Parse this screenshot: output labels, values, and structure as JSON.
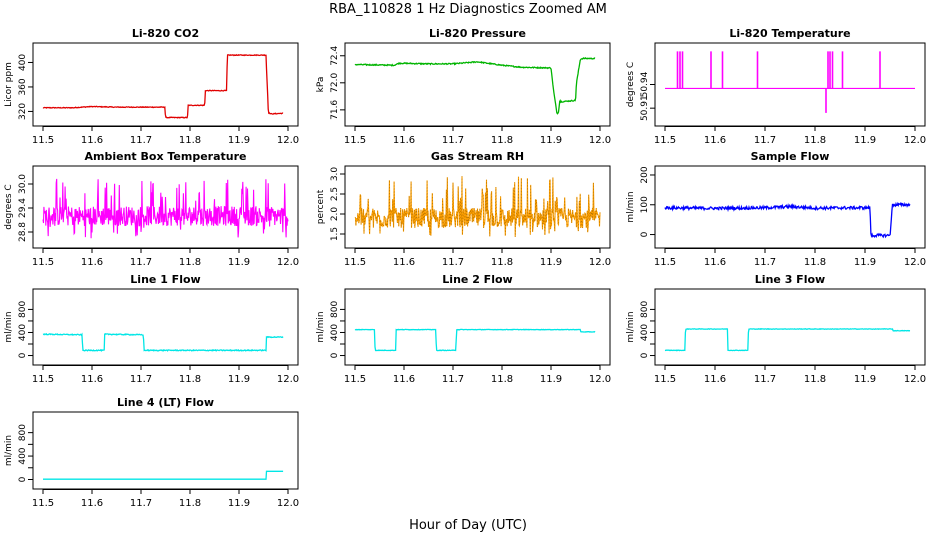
{
  "figure": {
    "title": "RBA_110828  1 Hz Diagnostics Zoomed AM",
    "xlabel": "Hour of Day (UTC)"
  },
  "chart_data": [
    {
      "type": "line",
      "title": "Li-820 CO2",
      "ylabel": "Licor ppm",
      "color": "#e00000",
      "xlim": [
        11.5,
        12.0
      ],
      "xticks": [
        11.5,
        11.6,
        11.7,
        11.8,
        11.9,
        12.0
      ],
      "xtick_labels": [
        "11.5",
        "11.6",
        "11.7",
        "11.8",
        "11.9",
        "12.0"
      ],
      "ylim": [
        306,
        422
      ],
      "yticks": [
        320,
        360,
        400
      ],
      "ytick_labels": [
        "320",
        "360",
        "400"
      ],
      "noise": 0.6,
      "series": [
        {
          "x": [
            11.5,
            11.56,
            11.6,
            11.65,
            11.7,
            11.749,
            11.75,
            11.795,
            11.796,
            11.83,
            11.831,
            11.875,
            11.876,
            11.955,
            11.96,
            11.965,
            11.99
          ],
          "y": [
            326,
            326,
            328,
            327,
            327,
            327,
            310,
            310,
            330,
            330,
            354,
            354,
            412,
            412,
            318,
            316,
            317
          ]
        }
      ]
    },
    {
      "type": "line",
      "title": "Li-820 Pressure",
      "ylabel": "kPa",
      "color": "#00b400",
      "xlim": [
        11.5,
        12.0
      ],
      "xticks": [
        11.5,
        11.6,
        11.7,
        11.8,
        11.9,
        12.0
      ],
      "xtick_labels": [
        "11.5",
        "11.6",
        "11.7",
        "11.8",
        "11.9",
        "12.0"
      ],
      "ylim": [
        71.45,
        72.5
      ],
      "yticks": [
        71.6,
        72.0,
        72.4
      ],
      "ytick_labels": [
        "71.6",
        "72.0",
        "72.4"
      ],
      "noise": 0.008,
      "series": [
        {
          "x": [
            11.5,
            11.58,
            11.59,
            11.65,
            11.7,
            11.75,
            11.8,
            11.84,
            11.9,
            11.905,
            11.912,
            11.915,
            11.918,
            11.92,
            11.95,
            11.952,
            11.96,
            11.965,
            11.99
          ],
          "y": [
            72.27,
            72.26,
            72.29,
            72.28,
            72.28,
            72.31,
            72.26,
            72.23,
            72.22,
            71.9,
            71.55,
            71.55,
            71.75,
            71.72,
            71.74,
            72.0,
            72.35,
            72.36,
            72.36
          ]
        }
      ]
    },
    {
      "type": "line",
      "title": "Li-820 Temperature",
      "ylabel": "degrees C",
      "color": "#ff00ff",
      "xlim": [
        11.5,
        12.0
      ],
      "xticks": [
        11.5,
        11.6,
        11.7,
        11.8,
        11.9,
        12.0
      ],
      "xtick_labels": [
        "11.5",
        "11.6",
        "11.7",
        "11.8",
        "11.9",
        "12.0"
      ],
      "ylim": [
        50.895,
        50.985
      ],
      "yticks": [
        50.91,
        50.94
      ],
      "ytick_labels": [
        "50.91",
        "50.94"
      ],
      "baseline": 50.935,
      "spikes_up": [
        11.525,
        11.53,
        11.535,
        11.592,
        11.615,
        11.685,
        11.826,
        11.83,
        11.835,
        11.855,
        11.93
      ],
      "spikes_down": [
        11.822
      ],
      "spike_top": 50.982,
      "spike_bottom": 50.904
    },
    {
      "type": "line",
      "title": "Ambient Box Temperature",
      "ylabel": "degrees C",
      "color": "#ff00ff",
      "xlim": [
        11.5,
        12.0
      ],
      "xticks": [
        11.5,
        11.6,
        11.7,
        11.8,
        11.9,
        12.0
      ],
      "xtick_labels": [
        "11.5",
        "11.6",
        "11.7",
        "11.8",
        "11.9",
        "12.0"
      ],
      "ylim": [
        28.55,
        30.3
      ],
      "yticks": [
        28.8,
        29.4,
        30.0
      ],
      "ytick_labels": [
        "28.8",
        "29.4",
        "30.0"
      ],
      "band": {
        "center": 29.2,
        "half_width": 0.25,
        "spike_max": 30.15,
        "spike_min": 28.62
      }
    },
    {
      "type": "line",
      "title": "Gas Stream RH",
      "ylabel": "percent",
      "color": "#ffa000",
      "xlim": [
        11.5,
        12.0
      ],
      "xticks": [
        11.5,
        11.6,
        11.7,
        11.8,
        11.9,
        12.0
      ],
      "xtick_labels": [
        "11.5",
        "11.6",
        "11.7",
        "11.8",
        "11.9",
        "12.0"
      ],
      "ylim": [
        1.3,
        3.05
      ],
      "yticks": [
        1.5,
        2.0,
        2.5,
        3.0
      ],
      "ytick_labels": [
        "1.5",
        "2.0",
        "2.5",
        "3.0"
      ],
      "band": {
        "center": 1.9,
        "half_width": 0.25,
        "spike_max": 2.95,
        "spike_min": 1.4
      }
    },
    {
      "type": "line",
      "title": "Sample Flow",
      "ylabel": "ml/min",
      "color": "#0000ff",
      "xlim": [
        11.5,
        12.0
      ],
      "xticks": [
        11.5,
        11.6,
        11.7,
        11.8,
        11.9,
        12.0
      ],
      "xtick_labels": [
        "11.5",
        "11.6",
        "11.7",
        "11.8",
        "11.9",
        "12.0"
      ],
      "ylim": [
        -25,
        210
      ],
      "yticks": [
        0,
        100,
        200
      ],
      "ytick_labels": [
        "0",
        "100",
        "200"
      ],
      "noise": 5,
      "series": [
        {
          "x": [
            11.5,
            11.6,
            11.7,
            11.75,
            11.8,
            11.9,
            11.91,
            11.912,
            11.95,
            11.955,
            11.99
          ],
          "y": [
            90,
            88,
            90,
            94,
            89,
            90,
            90,
            -3,
            -3,
            100,
            100
          ]
        }
      ]
    },
    {
      "type": "line",
      "title": "Line 1 Flow",
      "ylabel": "ml/min",
      "color": "#00e6e6",
      "xlim": [
        11.5,
        12.0
      ],
      "xticks": [
        11.5,
        11.6,
        11.7,
        11.8,
        11.9,
        12.0
      ],
      "xtick_labels": [
        "11.5",
        "11.6",
        "11.7",
        "11.8",
        "11.9",
        "12.0"
      ],
      "ylim": [
        -60,
        1050
      ],
      "yticks": [
        0,
        200,
        400,
        600,
        800
      ],
      "ytick_labels": [
        "0",
        "400",
        "800"
      ],
      "noise": 8,
      "series": [
        {
          "x": [
            11.5,
            11.58,
            11.581,
            11.625,
            11.626,
            11.705,
            11.706,
            11.955,
            11.956,
            11.99
          ],
          "y": [
            370,
            360,
            90,
            90,
            370,
            360,
            90,
            90,
            320,
            320
          ]
        }
      ]
    },
    {
      "type": "line",
      "title": "Line 2 Flow",
      "ylabel": "ml/min",
      "color": "#00e6e6",
      "xlim": [
        11.5,
        12.0
      ],
      "xticks": [
        11.5,
        11.6,
        11.7,
        11.8,
        11.9,
        12.0
      ],
      "xtick_labels": [
        "11.5",
        "11.6",
        "11.7",
        "11.8",
        "11.9",
        "12.0"
      ],
      "ylim": [
        -60,
        1050
      ],
      "yticks": [
        0,
        200,
        400,
        600,
        800
      ],
      "ytick_labels": [
        "0",
        "400",
        "800"
      ],
      "noise": 4,
      "series": [
        {
          "x": [
            11.5,
            11.54,
            11.541,
            11.583,
            11.584,
            11.665,
            11.666,
            11.706,
            11.707,
            11.96,
            11.961,
            11.99
          ],
          "y": [
            450,
            450,
            90,
            90,
            450,
            450,
            90,
            90,
            450,
            450,
            410,
            410
          ]
        }
      ]
    },
    {
      "type": "line",
      "title": "Line 3 Flow",
      "ylabel": "ml/min",
      "color": "#00e6e6",
      "xlim": [
        11.5,
        12.0
      ],
      "xticks": [
        11.5,
        11.6,
        11.7,
        11.8,
        11.9,
        12.0
      ],
      "xtick_labels": [
        "11.5",
        "11.6",
        "11.7",
        "11.8",
        "11.9",
        "12.0"
      ],
      "ylim": [
        -60,
        1050
      ],
      "yticks": [
        0,
        200,
        400,
        600,
        800
      ],
      "ytick_labels": [
        "0",
        "400",
        "800"
      ],
      "noise": 4,
      "series": [
        {
          "x": [
            11.5,
            11.54,
            11.541,
            11.625,
            11.626,
            11.666,
            11.667,
            11.955,
            11.956,
            11.99
          ],
          "y": [
            90,
            90,
            460,
            460,
            90,
            90,
            460,
            460,
            430,
            430
          ]
        }
      ]
    },
    {
      "type": "line",
      "title": "Line 4 (LT) Flow",
      "ylabel": "ml/min",
      "color": "#00e6e6",
      "xlim": [
        11.5,
        12.0
      ],
      "xticks": [
        11.5,
        11.6,
        11.7,
        11.8,
        11.9,
        12.0
      ],
      "xtick_labels": [
        "11.5",
        "11.6",
        "11.7",
        "11.8",
        "11.9",
        "12.0"
      ],
      "ylim": [
        -60,
        1050
      ],
      "yticks": [
        0,
        200,
        400,
        600,
        800
      ],
      "ytick_labels": [
        "0",
        "400",
        "800"
      ],
      "noise": 0,
      "series": [
        {
          "x": [
            11.5,
            11.955,
            11.956,
            11.99
          ],
          "y": [
            5,
            5,
            140,
            140
          ]
        }
      ]
    }
  ]
}
